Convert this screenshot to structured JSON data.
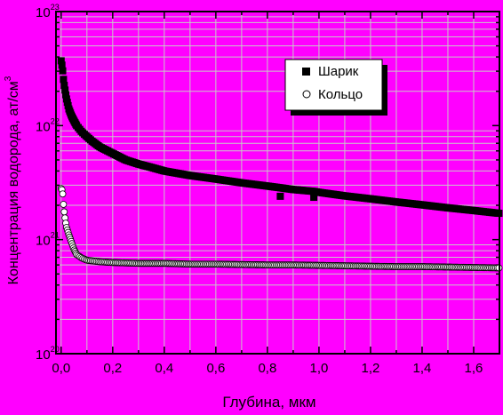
{
  "colors": {
    "background": "#ff00ff",
    "grid": "#c8c8c8",
    "axis": "#000000",
    "ball_marker": "#000000",
    "ring_marker": "#ffffff"
  },
  "chart_data": {
    "type": "scatter",
    "title": "",
    "xlabel": "Глубина, мкм",
    "ylabel": "Концентрация водорода, ат/см",
    "ylabel_superscript": "3",
    "xlim": [
      -0.02,
      1.7
    ],
    "ylim": [
      1e+20,
      1e+23
    ],
    "yscale": "log",
    "grid": true,
    "x_ticks": [
      0.0,
      0.2,
      0.4,
      0.6,
      0.8,
      1.0,
      1.2,
      1.4,
      1.6
    ],
    "x_tick_labels": [
      "0,0",
      "0,2",
      "0,4",
      "0,6",
      "0,8",
      "1,0",
      "1,2",
      "1,4",
      "1,6"
    ],
    "y_ticks": [
      {
        "base": "10",
        "exp": "20",
        "value": 1e+20
      },
      {
        "base": "10",
        "exp": "21",
        "value": 1e+21
      },
      {
        "base": "10",
        "exp": "22",
        "value": 1e+22
      },
      {
        "base": "10",
        "exp": "23",
        "value": 1e+23
      }
    ],
    "legend": {
      "position": "top-right"
    },
    "series": [
      {
        "name": "Шарик",
        "marker": "filled-square",
        "x": [
          0.0,
          0.005,
          0.01,
          0.02,
          0.03,
          0.04,
          0.05,
          0.06,
          0.08,
          0.1,
          0.12,
          0.15,
          0.2,
          0.25,
          0.3,
          0.35,
          0.4,
          0.5,
          0.6,
          0.7,
          0.8,
          0.85,
          0.9,
          0.98,
          1.0,
          1.1,
          1.2,
          1.3,
          1.4,
          1.5,
          1.6,
          1.7
        ],
        "y": [
          3.7e+22,
          3.2e+22,
          2.4e+22,
          1.75e+22,
          1.4e+22,
          1.22e+22,
          1.1e+22,
          1e+22,
          8.8e+21,
          8e+21,
          7.3e+21,
          6.5e+21,
          5.7e+21,
          5e+21,
          4.6e+21,
          4.3e+21,
          4e+21,
          3.65e+21,
          3.4e+21,
          3.15e+21,
          2.95e+21,
          2.85e+21,
          2.75e+21,
          2.65e+21,
          2.6e+21,
          2.42e+21,
          2.28e+21,
          2.14e+21,
          2.02e+21,
          1.9e+21,
          1.8e+21,
          1.7e+21
        ],
        "outliers_x": [
          0.85,
          0.98
        ],
        "outliers_y": [
          2.4e+21,
          2.35e+21
        ]
      },
      {
        "name": "Кольцо",
        "marker": "open-circle",
        "x": [
          0.0,
          0.005,
          0.01,
          0.015,
          0.02,
          0.03,
          0.04,
          0.05,
          0.06,
          0.08,
          0.1,
          0.15,
          0.2,
          0.3,
          0.4,
          0.5,
          0.6,
          0.7,
          0.8,
          0.9,
          1.0,
          1.1,
          1.2,
          1.3,
          1.4,
          1.5,
          1.6,
          1.7
        ],
        "y": [
          2.8e+21,
          2.7e+21,
          1.9e+21,
          1.55e+21,
          1.3e+21,
          1.1e+21,
          9.5e+20,
          8.2e+20,
          7.4e+20,
          6.9e+20,
          6.6e+20,
          6.4e+20,
          6.3e+20,
          6.2e+20,
          6.2e+20,
          6.1e+20,
          6.1e+20,
          6.05e+20,
          6e+20,
          6e+20,
          5.95e+20,
          5.9e+20,
          5.85e+20,
          5.8e+20,
          5.8e+20,
          5.75e+20,
          5.7e+20,
          5.65e+20
        ]
      }
    ]
  }
}
